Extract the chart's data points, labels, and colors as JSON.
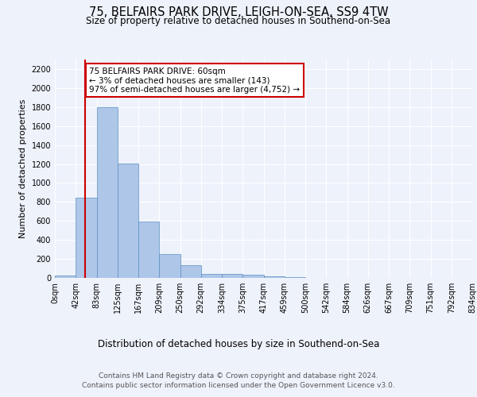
{
  "title1": "75, BELFAIRS PARK DRIVE, LEIGH-ON-SEA, SS9 4TW",
  "title2": "Size of property relative to detached houses in Southend-on-Sea",
  "xlabel": "Distribution of detached houses by size in Southend-on-Sea",
  "ylabel": "Number of detached properties",
  "bin_labels": [
    "0sqm",
    "42sqm",
    "83sqm",
    "125sqm",
    "167sqm",
    "209sqm",
    "250sqm",
    "292sqm",
    "334sqm",
    "375sqm",
    "417sqm",
    "459sqm",
    "500sqm",
    "542sqm",
    "584sqm",
    "626sqm",
    "667sqm",
    "709sqm",
    "751sqm",
    "792sqm",
    "834sqm"
  ],
  "bar_values": [
    25,
    845,
    1800,
    1205,
    590,
    255,
    130,
    45,
    40,
    30,
    20,
    10,
    0,
    0,
    0,
    0,
    0,
    0,
    0,
    0
  ],
  "bar_color": "#aec6e8",
  "bar_edge_color": "#5a8fc2",
  "property_line_x": 1.43,
  "annotation_title": "75 BELFAIRS PARK DRIVE: 60sqm",
  "annotation_line1": "← 3% of detached houses are smaller (143)",
  "annotation_line2": "97% of semi-detached houses are larger (4,752) →",
  "annotation_box_color": "#ffffff",
  "annotation_box_edge_color": "#cc0000",
  "vline_color": "#cc0000",
  "ylim": [
    0,
    2300
  ],
  "yticks": [
    0,
    200,
    400,
    600,
    800,
    1000,
    1200,
    1400,
    1600,
    1800,
    2000,
    2200
  ],
  "footer1": "Contains HM Land Registry data © Crown copyright and database right 2024.",
  "footer2": "Contains public sector information licensed under the Open Government Licence v3.0.",
  "background_color": "#eef2fb",
  "plot_background": "#eef2fb",
  "grid_color": "#ffffff",
  "title1_fontsize": 10.5,
  "title2_fontsize": 8.5,
  "xlabel_fontsize": 8.5,
  "ylabel_fontsize": 8,
  "tick_fontsize": 7,
  "footer_fontsize": 6.5,
  "annotation_fontsize": 7.5
}
